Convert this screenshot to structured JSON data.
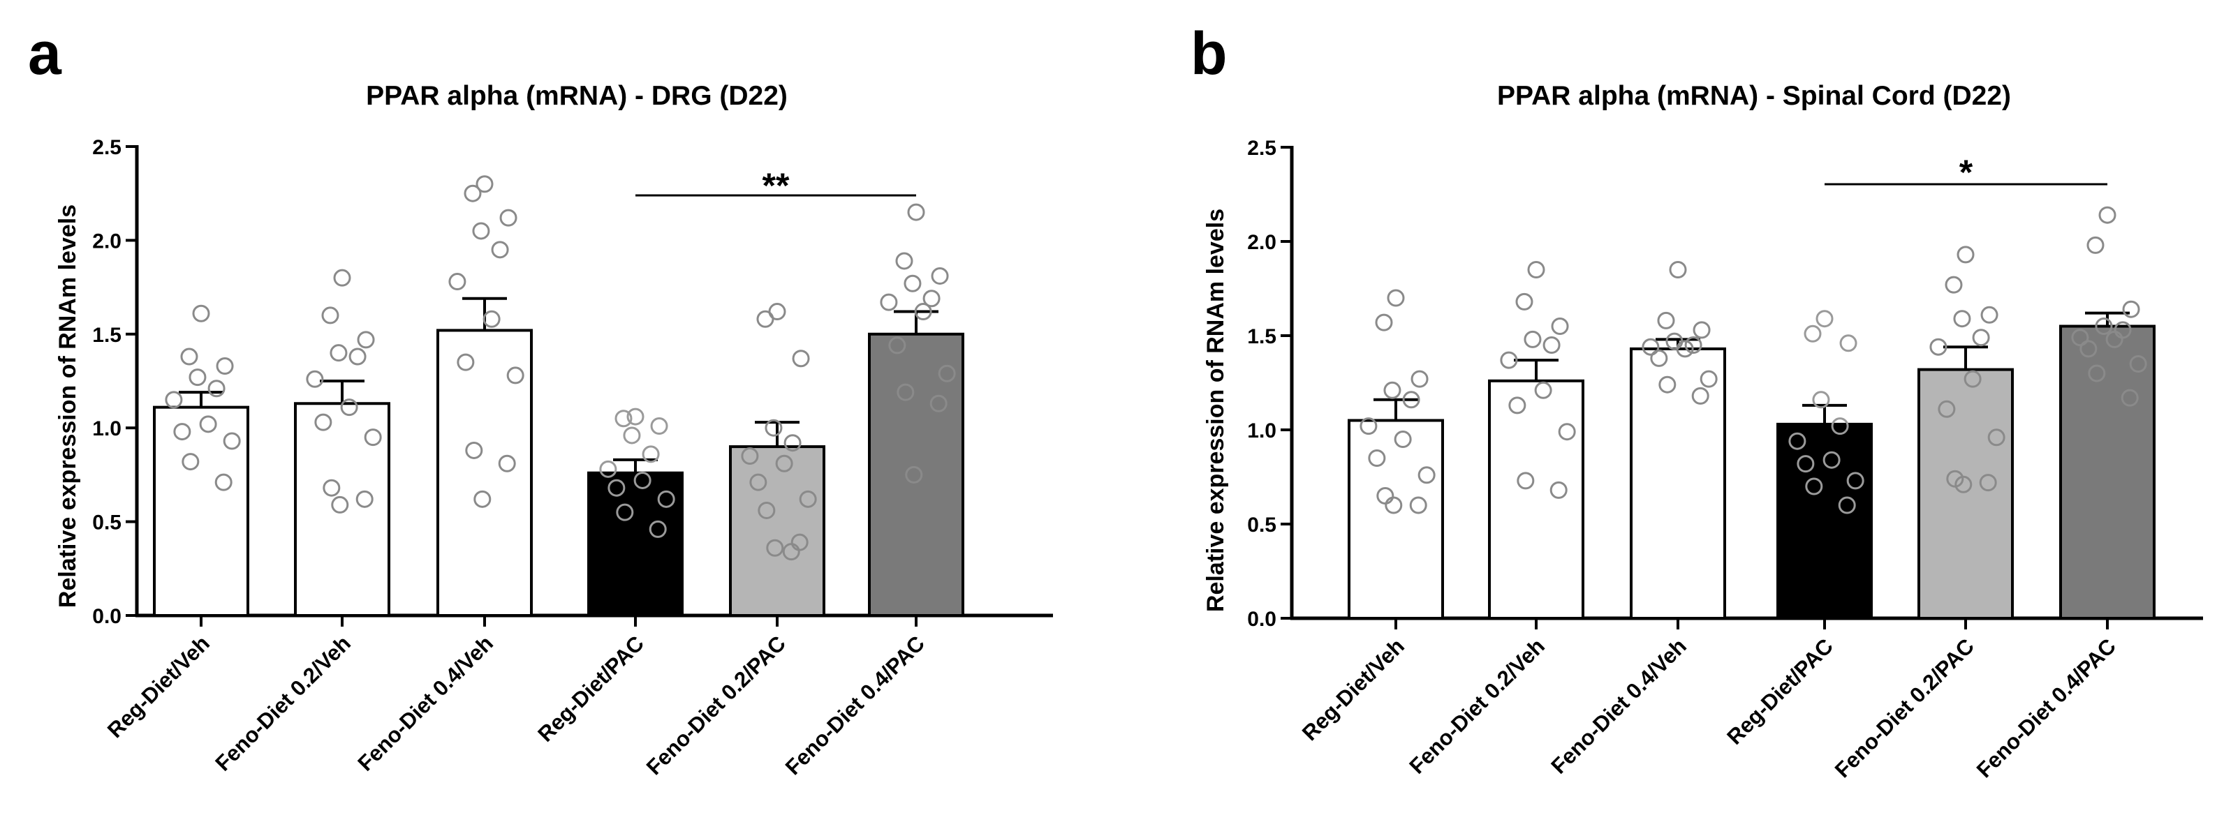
{
  "chart_data": [
    {
      "panel_label": "a",
      "type": "bar",
      "title": "PPAR alpha (mRNA) - DRG (D22)",
      "xlabel": "",
      "ylabel": "Relative expression of RNAm levels",
      "ylim": [
        0,
        2.5
      ],
      "yticks": [
        {
          "value": 0.0,
          "label": "0.0"
        },
        {
          "value": 0.5,
          "label": "0.5"
        },
        {
          "value": 1.0,
          "label": "1.0"
        },
        {
          "value": 1.5,
          "label": "1.5"
        },
        {
          "value": 2.0,
          "label": "2.0"
        },
        {
          "value": 2.5,
          "label": "2.5"
        }
      ],
      "categories": [
        "Reg-Diet/Veh",
        "Feno-Diet 0.2/Veh",
        "Feno-Diet 0.4/Veh",
        "Reg-Diet/PAC",
        "Feno-Diet 0.2/PAC",
        "Feno-Diet 0.4/PAC"
      ],
      "bar_colors": [
        "#ffffff",
        "#ffffff",
        "#ffffff",
        "#000000",
        "#b5b5b5",
        "#7a7a7a"
      ],
      "values": [
        1.11,
        1.13,
        1.52,
        0.76,
        0.9,
        1.5
      ],
      "sem": [
        0.08,
        0.12,
        0.17,
        0.07,
        0.13,
        0.12
      ],
      "points": [
        [
          1.61,
          1.38,
          1.33,
          1.27,
          1.21,
          1.15,
          1.02,
          0.98,
          0.93,
          0.82,
          0.71
        ],
        [
          1.8,
          1.6,
          1.47,
          1.4,
          1.38,
          1.26,
          1.11,
          1.03,
          0.95,
          0.68,
          0.62,
          0.59
        ],
        [
          2.3,
          2.25,
          2.12,
          2.05,
          1.95,
          1.78,
          1.58,
          1.35,
          1.28,
          0.88,
          0.81,
          0.62
        ],
        [
          1.06,
          1.05,
          1.01,
          0.96,
          0.86,
          0.78,
          0.72,
          0.68,
          0.62,
          0.55,
          0.46
        ],
        [
          1.62,
          1.58,
          1.37,
          1.0,
          0.92,
          0.85,
          0.81,
          0.71,
          0.62,
          0.56,
          0.39,
          0.36,
          0.34
        ],
        [
          2.15,
          1.89,
          1.81,
          1.77,
          1.69,
          1.67,
          1.62,
          1.44,
          1.29,
          1.19,
          1.13,
          0.75
        ]
      ],
      "significance": [
        {
          "from": 3,
          "to": 5,
          "label": "**"
        }
      ]
    },
    {
      "panel_label": "b",
      "type": "bar",
      "title": "PPAR alpha (mRNA) - Spinal Cord (D22)",
      "xlabel": "",
      "ylabel": "Relative expression of RNAm levels",
      "ylim": [
        0,
        2.5
      ],
      "yticks": [
        {
          "value": 0.0,
          "label": "0.0"
        },
        {
          "value": 0.5,
          "label": "0.5"
        },
        {
          "value": 1.0,
          "label": "1.0"
        },
        {
          "value": 1.5,
          "label": "1.5"
        },
        {
          "value": 2.0,
          "label": "2.0"
        },
        {
          "value": 2.5,
          "label": "2.5"
        }
      ],
      "categories": [
        "Reg-Diet/Veh",
        "Feno-Diet 0.2/Veh",
        "Feno-Diet 0.4/Veh",
        "Reg-Diet/PAC",
        "Feno-Diet 0.2/PAC",
        "Feno-Diet 0.4/PAC"
      ],
      "bar_colors": [
        "#ffffff",
        "#ffffff",
        "#ffffff",
        "#000000",
        "#b5b5b5",
        "#7a7a7a"
      ],
      "values": [
        1.05,
        1.26,
        1.43,
        1.03,
        1.32,
        1.55
      ],
      "sem": [
        0.11,
        0.11,
        0.05,
        0.1,
        0.12,
        0.07
      ],
      "points": [
        [
          1.7,
          1.57,
          1.27,
          1.21,
          1.16,
          1.02,
          0.95,
          0.85,
          0.76,
          0.65,
          0.6,
          0.6
        ],
        [
          1.85,
          1.68,
          1.55,
          1.48,
          1.45,
          1.37,
          1.21,
          1.13,
          0.99,
          0.73,
          0.68
        ],
        [
          1.85,
          1.58,
          1.53,
          1.47,
          1.45,
          1.44,
          1.43,
          1.38,
          1.27,
          1.24,
          1.18
        ],
        [
          1.59,
          1.51,
          1.46,
          1.16,
          1.02,
          0.94,
          0.84,
          0.82,
          0.73,
          0.7,
          0.6
        ],
        [
          1.93,
          1.77,
          1.61,
          1.59,
          1.49,
          1.44,
          1.27,
          1.11,
          0.96,
          0.74,
          0.72,
          0.71
        ],
        [
          2.14,
          1.98,
          1.64,
          1.55,
          1.53,
          1.49,
          1.48,
          1.43,
          1.35,
          1.3,
          1.17
        ]
      ],
      "significance": [
        {
          "from": 3,
          "to": 5,
          "label": "*"
        }
      ]
    }
  ]
}
